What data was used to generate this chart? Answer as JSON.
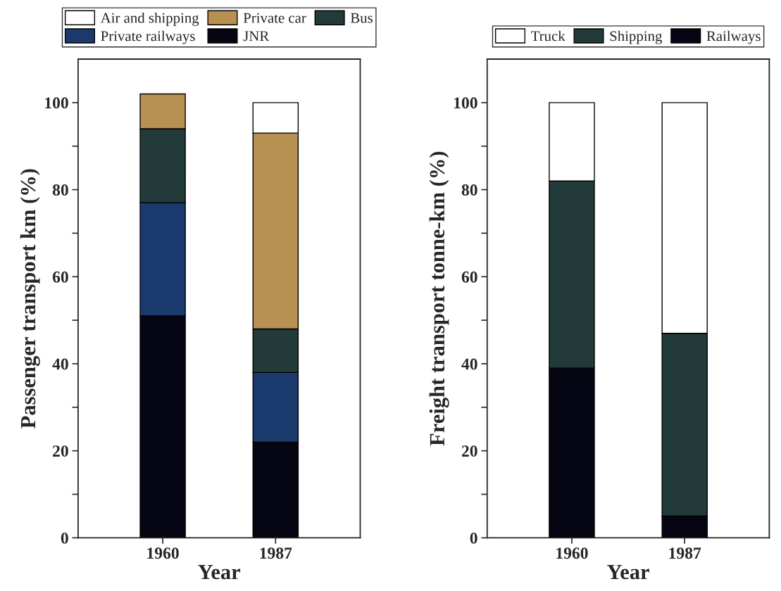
{
  "chart_data": [
    {
      "type": "bar",
      "stacked": true,
      "categories": [
        "1960",
        "1987"
      ],
      "xlabel": "Year",
      "ylabel": "Passenger transport km (%)",
      "ylim": [
        0,
        110
      ],
      "yticks": [
        0,
        {
          "value": 10,
          "label": null
        },
        20,
        {
          "value": 30,
          "label": null
        },
        40,
        {
          "value": 50,
          "label": null
        },
        60,
        {
          "value": 70,
          "label": null
        },
        80,
        {
          "value": 90,
          "label": null
        },
        100
      ],
      "legend": "top",
      "grid": false,
      "series": [
        {
          "name": "JNR",
          "color": "#050514",
          "values": [
            51,
            22
          ]
        },
        {
          "name": "Private railways",
          "color": "#1a3a6e",
          "values": [
            26,
            16
          ]
        },
        {
          "name": "Bus",
          "color": "#223a3a",
          "values": [
            17,
            10
          ]
        },
        {
          "name": "Private car",
          "color": "#b89052",
          "values": [
            8,
            45
          ]
        },
        {
          "name": "Air and shipping",
          "color": "#ffffff",
          "values": [
            null,
            7
          ]
        }
      ]
    },
    {
      "type": "bar",
      "stacked": true,
      "categories": [
        "1960",
        "1987"
      ],
      "xlabel": "Year",
      "ylabel": "Freight transport tonne-km (%)",
      "ylim": [
        0,
        110
      ],
      "yticks": [
        0,
        {
          "value": 10,
          "label": null
        },
        20,
        {
          "value": 30,
          "label": null
        },
        40,
        {
          "value": 50,
          "label": null
        },
        60,
        {
          "value": 70,
          "label": null
        },
        80,
        {
          "value": 90,
          "label": null
        },
        100
      ],
      "legend": "top",
      "grid": false,
      "series": [
        {
          "name": "Railways",
          "color": "#050514",
          "values": [
            39,
            5
          ]
        },
        {
          "name": "Shipping",
          "color": "#223a3a",
          "values": [
            43,
            42
          ]
        },
        {
          "name": "Truck",
          "color": "#ffffff",
          "values": [
            18,
            53
          ]
        }
      ]
    }
  ]
}
